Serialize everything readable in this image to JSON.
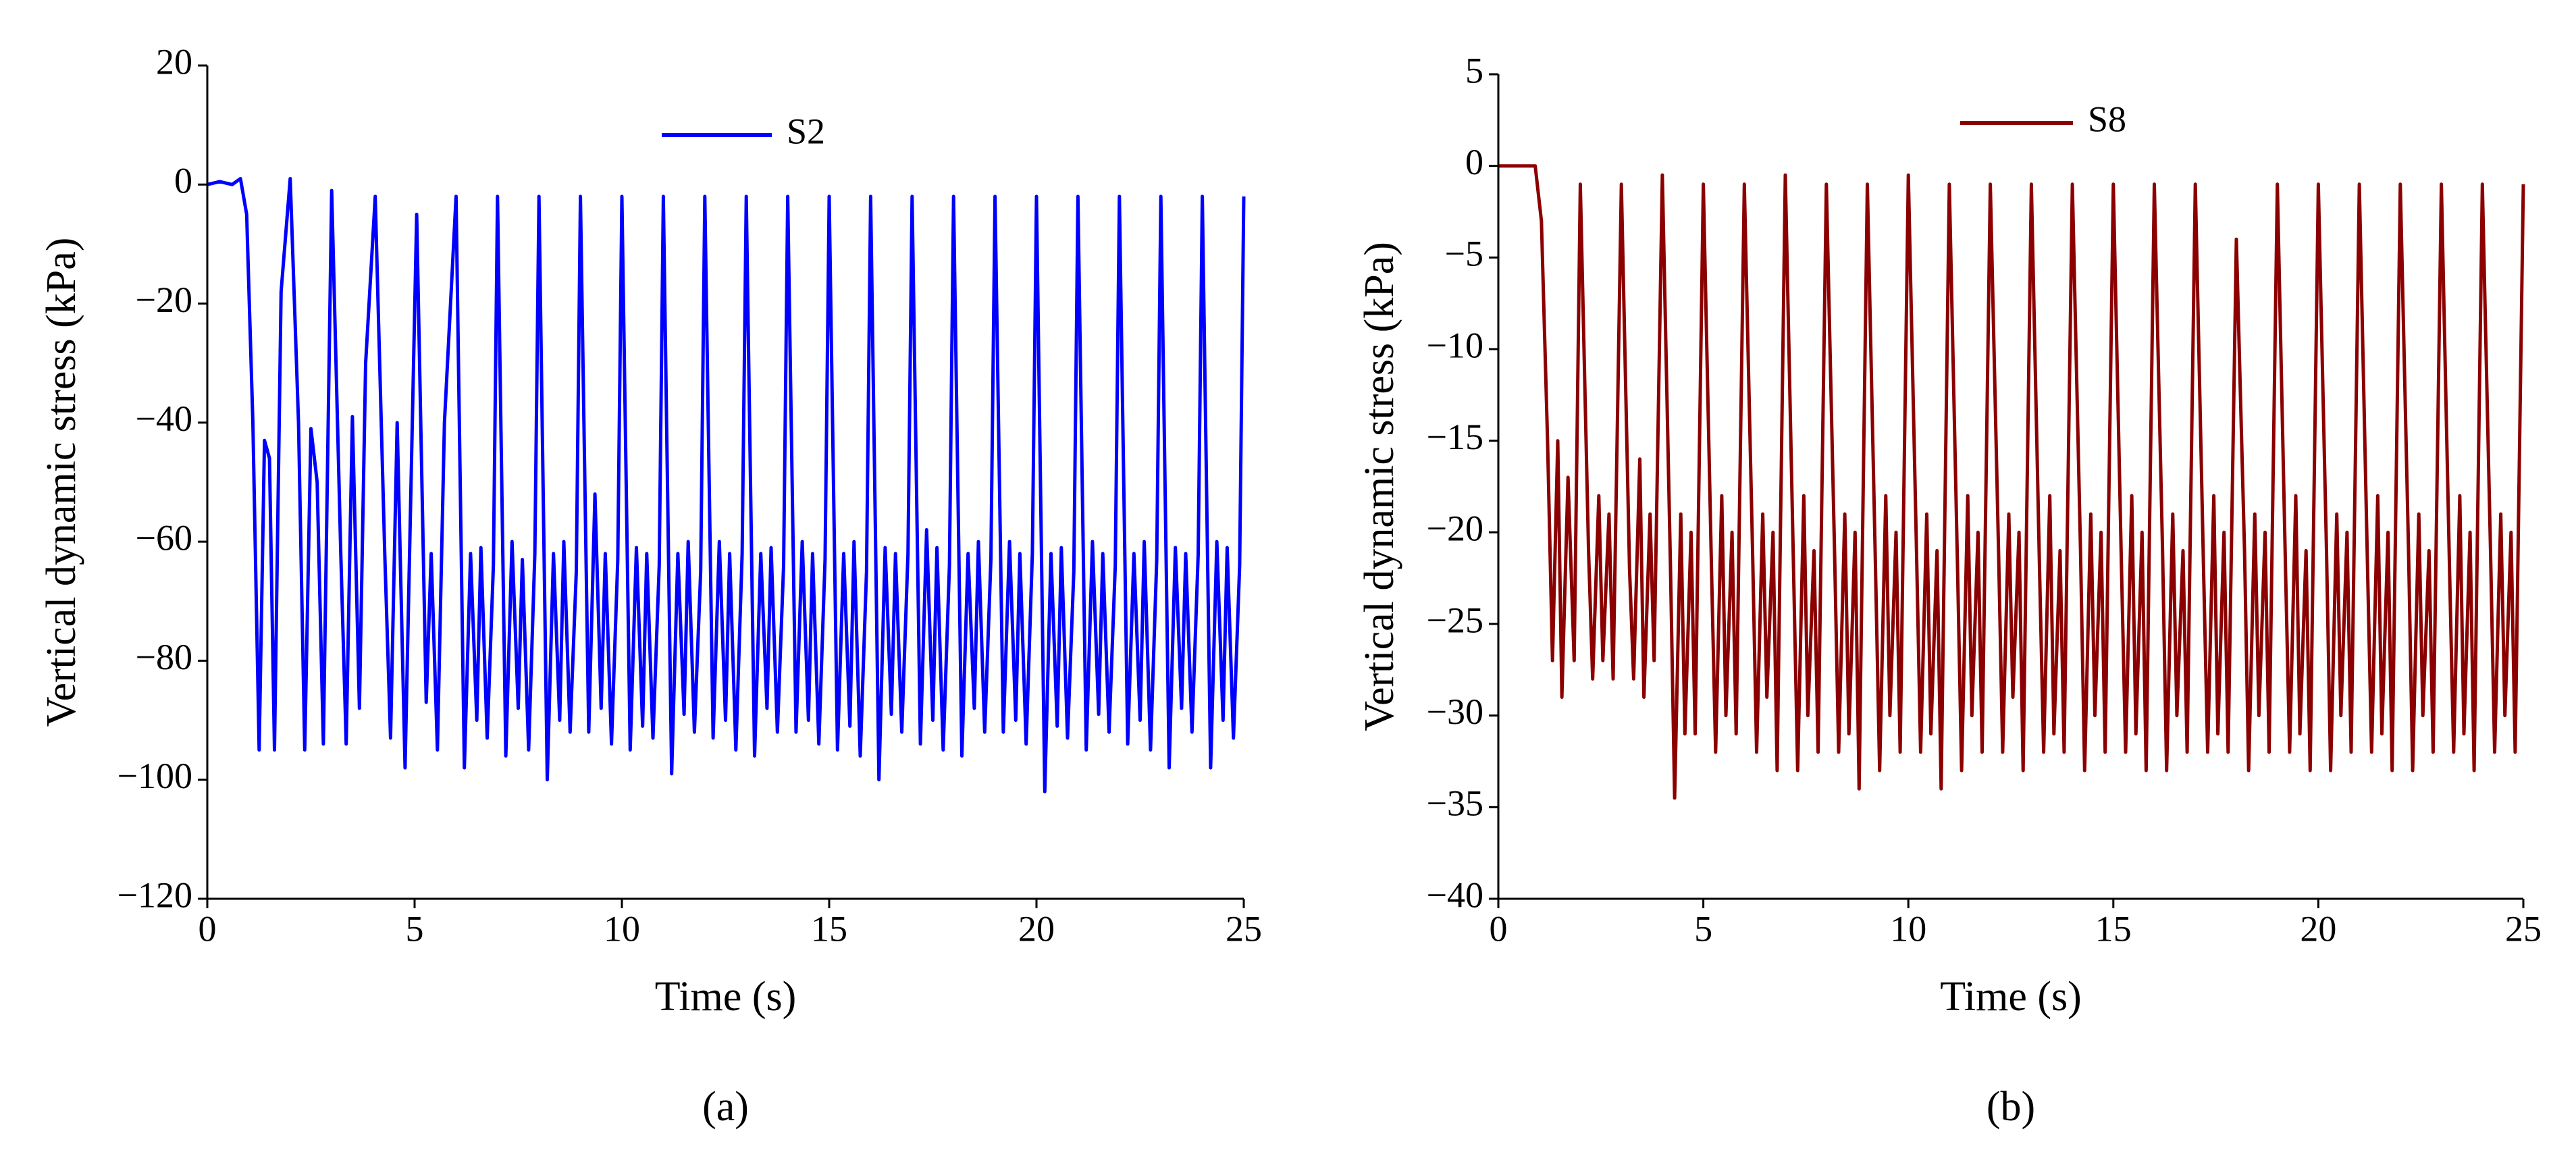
{
  "chart_data": [
    {
      "type": "line",
      "caption": "(a)",
      "xlabel": "Time (s)",
      "ylabel": "Vertical dynamic stress (kPa)",
      "xlim": [
        0,
        25
      ],
      "xticks": [
        0,
        5,
        10,
        15,
        20,
        25
      ],
      "ylim": [
        -120,
        20
      ],
      "yticks": [
        -120,
        -100,
        -80,
        -60,
        -40,
        -20,
        0,
        20
      ],
      "x": [
        0,
        0.3,
        0.6,
        0.8,
        0.95,
        1.1,
        1.25,
        1.38,
        1.5,
        1.62,
        1.78,
        2.0,
        2.2,
        2.35,
        2.5,
        2.65,
        2.8,
        3.0,
        3.22,
        3.35,
        3.5,
        3.67,
        3.82,
        4.05,
        4.28,
        4.42,
        4.58,
        4.77,
        5.05,
        5.28,
        5.4,
        5.55,
        5.72,
        6.0,
        6.2,
        6.35,
        6.5,
        6.6,
        6.75,
        6.9,
        7.0,
        7.2,
        7.35,
        7.5,
        7.6,
        7.75,
        7.9,
        8.0,
        8.2,
        8.35,
        8.5,
        8.6,
        8.75,
        8.9,
        9.0,
        9.2,
        9.35,
        9.5,
        9.6,
        9.75,
        9.9,
        10.0,
        10.2,
        10.35,
        10.5,
        10.6,
        10.75,
        10.9,
        11.0,
        11.2,
        11.35,
        11.5,
        11.6,
        11.75,
        11.9,
        12.0,
        12.2,
        12.35,
        12.5,
        12.6,
        12.75,
        12.9,
        13.0,
        13.2,
        13.35,
        13.5,
        13.6,
        13.75,
        13.9,
        14.0,
        14.2,
        14.35,
        14.5,
        14.6,
        14.75,
        14.9,
        15.0,
        15.2,
        15.35,
        15.5,
        15.6,
        15.75,
        15.9,
        16.0,
        16.2,
        16.35,
        16.5,
        16.6,
        16.75,
        16.9,
        17.0,
        17.2,
        17.35,
        17.5,
        17.6,
        17.75,
        17.9,
        18.0,
        18.2,
        18.35,
        18.5,
        18.6,
        18.75,
        18.9,
        19.0,
        19.2,
        19.35,
        19.5,
        19.6,
        19.75,
        19.9,
        20.0,
        20.2,
        20.35,
        20.5,
        20.6,
        20.75,
        20.9,
        21.0,
        21.2,
        21.35,
        21.5,
        21.6,
        21.75,
        21.9,
        22.0,
        22.2,
        22.35,
        22.5,
        22.6,
        22.75,
        22.9,
        23.0,
        23.2,
        23.35,
        23.5,
        23.6,
        23.75,
        23.9,
        24.0,
        24.2,
        24.35,
        24.5,
        24.6,
        24.75,
        24.9,
        25.0
      ],
      "series": [
        {
          "name": "S2",
          "color": "#0000ff",
          "values": [
            0,
            0.5,
            0,
            1,
            -5,
            -40,
            -95,
            -43,
            -46,
            -95,
            -18,
            1,
            -40,
            -95,
            -41,
            -50,
            -94,
            -1,
            -62,
            -94,
            -39,
            -88,
            -30,
            -2,
            -62,
            -93,
            -40,
            -98,
            -5,
            -87,
            -62,
            -95,
            -40,
            -2,
            -98,
            -62,
            -90,
            -61,
            -93,
            -64,
            -2,
            -96,
            -60,
            -88,
            -63,
            -95,
            -62,
            -2,
            -100,
            -62,
            -90,
            -60,
            -92,
            -65,
            -2,
            -92,
            -52,
            -88,
            -62,
            -94,
            -63,
            -2,
            -95,
            -61,
            -91,
            -62,
            -93,
            -64,
            -2,
            -99,
            -62,
            -89,
            -60,
            -92,
            -65,
            -2,
            -93,
            -60,
            -90,
            -62,
            -95,
            -62,
            -2,
            -96,
            -62,
            -88,
            -61,
            -92,
            -64,
            -2,
            -92,
            -60,
            -90,
            -62,
            -94,
            -63,
            -2,
            -95,
            -62,
            -91,
            -60,
            -96,
            -65,
            -2,
            -100,
            -61,
            -89,
            -62,
            -92,
            -62,
            -2,
            -94,
            -58,
            -90,
            -61,
            -95,
            -64,
            -2,
            -96,
            -62,
            -88,
            -60,
            -92,
            -63,
            -2,
            -92,
            -60,
            -90,
            -62,
            -94,
            -62,
            -2,
            -102,
            -62,
            -91,
            -61,
            -93,
            -65,
            -2,
            -95,
            -60,
            -89,
            -62,
            -92,
            -64,
            -2,
            -94,
            -62,
            -90,
            -60,
            -95,
            -63,
            -2,
            -98,
            -61,
            -88,
            -62,
            -92,
            -62,
            -2,
            -98,
            -60,
            -90,
            -61,
            -93,
            -64,
            -2
          ]
        }
      ]
    },
    {
      "type": "line",
      "caption": "(b)",
      "xlabel": "Time (s)",
      "ylabel": "Vertical dynamic stress (kPa)",
      "xlim": [
        0,
        25
      ],
      "xticks": [
        0,
        5,
        10,
        15,
        20,
        25
      ],
      "ylim": [
        -40,
        5
      ],
      "yticks": [
        -40,
        -35,
        -30,
        -25,
        -20,
        -15,
        -10,
        -5,
        0,
        5
      ],
      "x": [
        0,
        0.5,
        0.9,
        1.05,
        1.2,
        1.32,
        1.45,
        1.55,
        1.7,
        1.85,
        2.0,
        2.2,
        2.3,
        2.45,
        2.55,
        2.7,
        2.8,
        3.0,
        3.2,
        3.3,
        3.45,
        3.55,
        3.7,
        3.8,
        4.0,
        4.2,
        4.3,
        4.45,
        4.55,
        4.7,
        4.8,
        5.0,
        5.2,
        5.3,
        5.45,
        5.55,
        5.7,
        5.8,
        6.0,
        6.2,
        6.3,
        6.45,
        6.55,
        6.7,
        6.8,
        7.0,
        7.2,
        7.3,
        7.45,
        7.55,
        7.7,
        7.8,
        8.0,
        8.2,
        8.3,
        8.45,
        8.55,
        8.7,
        8.8,
        9.0,
        9.2,
        9.3,
        9.45,
        9.55,
        9.7,
        9.8,
        10.0,
        10.2,
        10.3,
        10.45,
        10.55,
        10.7,
        10.8,
        11.0,
        11.2,
        11.3,
        11.45,
        11.55,
        11.7,
        11.8,
        12.0,
        12.2,
        12.3,
        12.45,
        12.55,
        12.7,
        12.8,
        13.0,
        13.2,
        13.3,
        13.45,
        13.55,
        13.7,
        13.8,
        14.0,
        14.2,
        14.3,
        14.45,
        14.55,
        14.7,
        14.8,
        15.0,
        15.2,
        15.3,
        15.45,
        15.55,
        15.7,
        15.8,
        16.0,
        16.2,
        16.3,
        16.45,
        16.55,
        16.7,
        16.8,
        17.0,
        17.2,
        17.3,
        17.45,
        17.55,
        17.7,
        17.8,
        18.0,
        18.2,
        18.3,
        18.45,
        18.55,
        18.7,
        18.8,
        19.0,
        19.2,
        19.3,
        19.45,
        19.55,
        19.7,
        19.8,
        20.0,
        20.2,
        20.3,
        20.45,
        20.55,
        20.7,
        20.8,
        21.0,
        21.2,
        21.3,
        21.45,
        21.55,
        21.7,
        21.8,
        22.0,
        22.2,
        22.3,
        22.45,
        22.55,
        22.7,
        22.8,
        23.0,
        23.2,
        23.3,
        23.45,
        23.55,
        23.7,
        23.8,
        24.0,
        24.2,
        24.3,
        24.45,
        24.55,
        24.7,
        24.8,
        25.0
      ],
      "series": [
        {
          "name": "S8",
          "color": "#8b0000",
          "values": [
            0,
            0,
            0,
            -3,
            -15,
            -27,
            -15,
            -29,
            -17,
            -27,
            -1,
            -21,
            -28,
            -18,
            -27,
            -19,
            -28,
            -1,
            -22,
            -28,
            -16,
            -29,
            -19,
            -27,
            -0.5,
            -22,
            -34.5,
            -19,
            -31,
            -20,
            -31,
            -1,
            -22,
            -32,
            -18,
            -30,
            -20,
            -31,
            -1,
            -21,
            -32,
            -19,
            -29,
            -20,
            -33,
            -0.5,
            -22,
            -33,
            -18,
            -30,
            -21,
            -32,
            -1,
            -21,
            -32,
            -19,
            -31,
            -20,
            -34,
            -1,
            -22,
            -33,
            -18,
            -30,
            -20,
            -32,
            -0.5,
            -21,
            -32,
            -19,
            -31,
            -21,
            -34,
            -1,
            -22,
            -33,
            -18,
            -30,
            -20,
            -32,
            -1,
            -21,
            -32,
            -19,
            -29,
            -20,
            -33,
            -1,
            -22,
            -32,
            -18,
            -31,
            -21,
            -32,
            -1,
            -21,
            -33,
            -19,
            -30,
            -20,
            -32,
            -1,
            -22,
            -32,
            -18,
            -31,
            -20,
            -33,
            -1,
            -21,
            -33,
            -19,
            -30,
            -21,
            -32,
            -1,
            -22,
            -32,
            -18,
            -31,
            -20,
            -32,
            -4,
            -21,
            -33,
            -19,
            -30,
            -20,
            -32,
            -1,
            -22,
            -32,
            -18,
            -31,
            -21,
            -33,
            -1,
            -21,
            -33,
            -19,
            -30,
            -20,
            -32,
            -1,
            -22,
            -32,
            -18,
            -31,
            -20,
            -33,
            -1,
            -21,
            -33,
            -19,
            -30,
            -21,
            -32,
            -1,
            -22,
            -32,
            -18,
            -31,
            -20,
            -33,
            -1,
            -21,
            -32,
            -19,
            -30,
            -20,
            -32,
            -1
          ]
        }
      ]
    }
  ]
}
